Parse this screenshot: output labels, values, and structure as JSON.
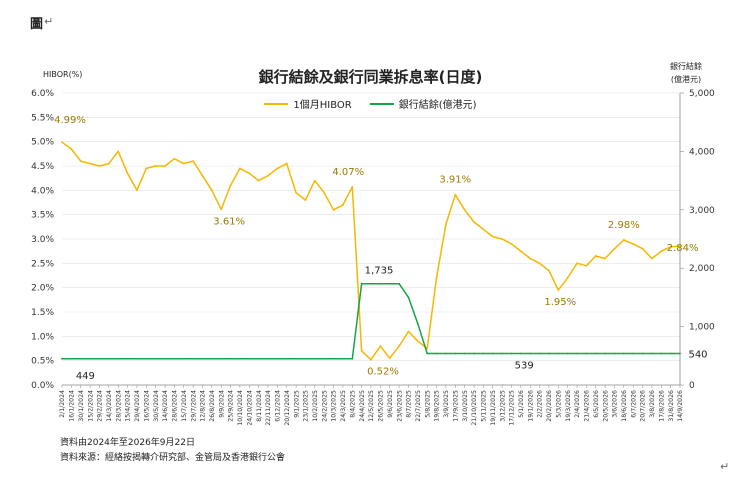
{
  "doc_label": "圖",
  "notes": {
    "line1": "資料由2024年至2026年9月22日",
    "line2": "資料來源：經絡按揭轉介研究部、金管局及香港銀行公會"
  },
  "colors": {
    "hibor": "#F5B800",
    "balance": "#16A34A",
    "axis": "#888888"
  },
  "chart_data": {
    "type": "line",
    "title": "銀行結餘及銀行同業拆息率(日度)",
    "ylabel_left": "HIBOR(%)",
    "ylabel_right": [
      "銀行結餘",
      "(億港元)"
    ],
    "ylim_left": [
      0,
      6
    ],
    "ylim_right": [
      0,
      5000
    ],
    "yticks_left": [
      "0.0%",
      "0.5%",
      "1.0%",
      "1.5%",
      "2.0%",
      "2.5%",
      "3.0%",
      "3.5%",
      "4.0%",
      "4.5%",
      "5.0%",
      "5.5%",
      "6.0%"
    ],
    "yticks_right": [
      "0",
      "1,000",
      "2,000",
      "3,000",
      "4,000",
      "5,000"
    ],
    "x": [
      "2/1/2024",
      "16/1/2024",
      "30/1/2024",
      "15/2/2024",
      "29/2/2024",
      "14/3/2024",
      "28/3/2024",
      "15/4/2024",
      "29/4/2024",
      "16/5/2024",
      "30/5/2024",
      "14/6/2024",
      "28/6/2024",
      "15/7/2024",
      "29/7/2024",
      "12/8/2024",
      "26/8/2024",
      "9/9/2024",
      "25/9/2024",
      "10/10/2024",
      "24/10/2024",
      "8/11/2024",
      "22/11/2024",
      "6/12/2024",
      "20/12/2024",
      "9/1/2025",
      "23/1/2025",
      "10/2/2025",
      "24/2/2025",
      "10/3/2025",
      "24/3/2025",
      "8/4/2025",
      "24/4/2025",
      "12/5/2025",
      "26/5/2025",
      "9/6/2025",
      "23/6/2025",
      "8/7/2025",
      "22/7/2025",
      "5/8/2025",
      "19/8/2025",
      "3/9/2025",
      "17/9/2025",
      "3/10/2025",
      "21/10/2025",
      "5/11/2025",
      "19/11/2025",
      "3/12/2025",
      "17/12/2025",
      "5/1/2026",
      "19/1/2026",
      "2/2/2026",
      "20/2/2026",
      "5/3/2026",
      "19/3/2026",
      "2/4/2026",
      "21/4/2026",
      "6/5/2026",
      "20/5/2026",
      "3/6/2026",
      "18/6/2026",
      "6/7/2026",
      "20/7/2026",
      "3/8/2026",
      "17/8/2026",
      "31/8/2026",
      "14/9/2026"
    ],
    "series": [
      {
        "name": "1個月HIBOR",
        "axis": "left",
        "color": "#F5B800",
        "values": [
          4.99,
          4.85,
          4.6,
          4.55,
          4.5,
          4.55,
          4.8,
          4.35,
          4.0,
          4.45,
          4.5,
          4.5,
          4.65,
          4.55,
          4.6,
          4.3,
          4.0,
          3.61,
          4.1,
          4.45,
          4.35,
          4.2,
          4.3,
          4.45,
          4.55,
          3.95,
          3.8,
          4.2,
          3.95,
          3.6,
          3.7,
          4.07,
          0.7,
          0.52,
          0.8,
          0.55,
          0.8,
          1.1,
          0.9,
          0.75,
          2.2,
          3.3,
          3.91,
          3.6,
          3.35,
          3.2,
          3.05,
          3.0,
          2.9,
          2.75,
          2.6,
          2.5,
          2.35,
          1.95,
          2.2,
          2.5,
          2.45,
          2.65,
          2.6,
          2.8,
          2.98,
          2.9,
          2.8,
          2.6,
          2.75,
          2.84,
          2.85
        ]
      },
      {
        "name": "銀行結餘(億港元)",
        "axis": "right",
        "color": "#16A34A",
        "values": [
          449,
          449,
          449,
          449,
          449,
          449,
          449,
          449,
          449,
          449,
          449,
          449,
          449,
          449,
          449,
          449,
          449,
          449,
          449,
          449,
          449,
          449,
          449,
          449,
          449,
          449,
          449,
          449,
          449,
          449,
          449,
          449,
          1735,
          1735,
          1735,
          1735,
          1735,
          1500,
          1050,
          540,
          540,
          540,
          540,
          540,
          540,
          540,
          540,
          540,
          539,
          539,
          539,
          539,
          539,
          539,
          539,
          539,
          539,
          540,
          540,
          540,
          540,
          540,
          540,
          540,
          540,
          540,
          540
        ]
      }
    ],
    "annotations": [
      {
        "text": "4.99%",
        "series": 0,
        "index": 0
      },
      {
        "text": "3.61%",
        "series": 0,
        "index": 17
      },
      {
        "text": "4.07%",
        "series": 0,
        "index": 31
      },
      {
        "text": "0.52%",
        "series": 0,
        "index": 33
      },
      {
        "text": "3.91%",
        "series": 0,
        "index": 42
      },
      {
        "text": "1.95%",
        "series": 0,
        "index": 53
      },
      {
        "text": "2.98%",
        "series": 0,
        "index": 60
      },
      {
        "text": "2.84%",
        "series": 0,
        "index": 65
      },
      {
        "text": "449",
        "series": 1,
        "index": 1
      },
      {
        "text": "1,735",
        "series": 1,
        "index": 33
      },
      {
        "text": "539",
        "series": 1,
        "index": 50
      },
      {
        "text": "540",
        "series": 1,
        "index": 66
      }
    ],
    "legend_position": "top-center",
    "grid": true
  }
}
